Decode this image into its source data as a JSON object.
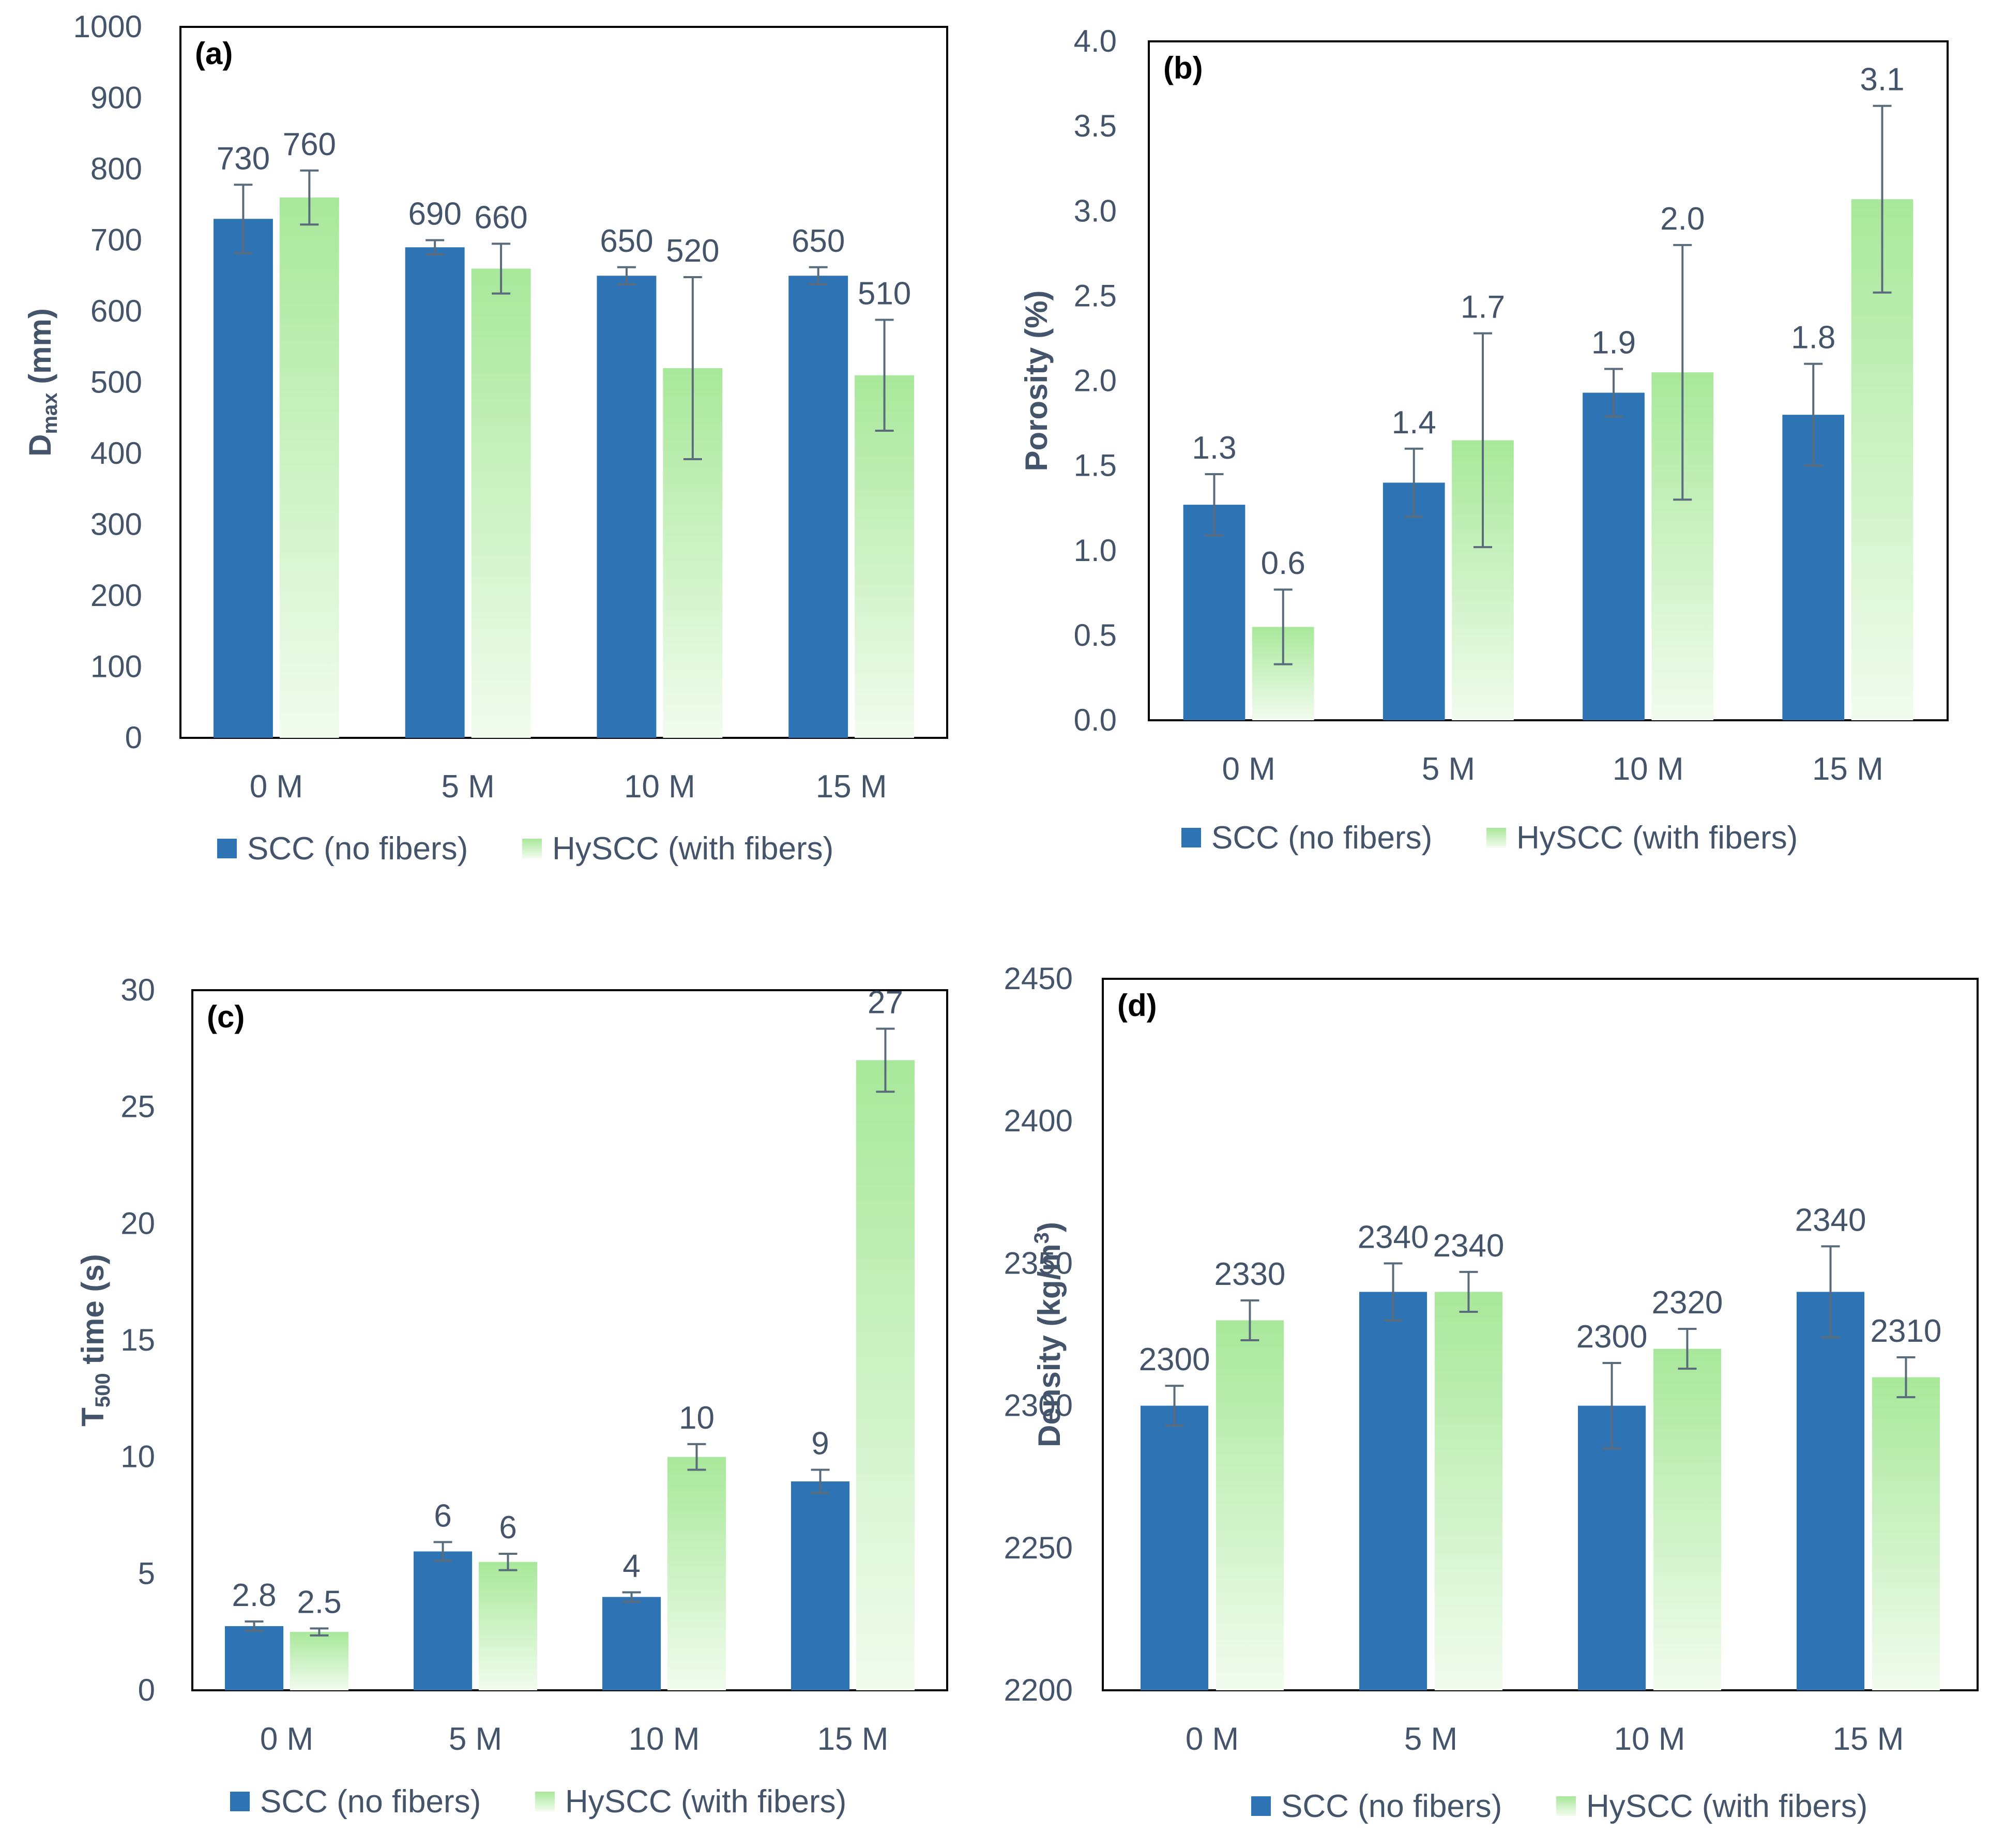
{
  "colors": {
    "scc": "#2e74b5",
    "hyscc_top": "#a8e89a",
    "hyscc_bottom": "#f2fcef",
    "axis_text": "#44546a",
    "error_bar": "#5a6b7c",
    "frame": "#000000"
  },
  "legend": {
    "scc": "SCC (no fibers)",
    "hyscc": "HySCC (with fibers)"
  },
  "chart_data": [
    {
      "id": "a",
      "type": "bar",
      "panel_label": "(a)",
      "ylabel": {
        "main": "D",
        "sub": "max",
        "rest": " (mm)"
      },
      "categories": [
        "0 M",
        "5 M",
        "10 M",
        "15 M"
      ],
      "ylim": [
        0,
        1000
      ],
      "yticks": [
        0,
        100,
        200,
        300,
        400,
        500,
        600,
        700,
        800,
        900,
        1000
      ],
      "ytick_labels": [
        "0",
        "100",
        "200",
        "300",
        "400",
        "500",
        "600",
        "700",
        "800",
        "900",
        "1000"
      ],
      "series": [
        {
          "name": "SCC (no fibers)",
          "values": [
            730,
            690,
            650,
            650
          ],
          "errors": [
            48,
            10,
            12,
            12
          ],
          "labels": [
            "730",
            "690",
            "650",
            "650"
          ]
        },
        {
          "name": "HySCC (with fibers)",
          "values": [
            760,
            660,
            520,
            510
          ],
          "errors": [
            38,
            35,
            128,
            78
          ],
          "labels": [
            "760",
            "660",
            "520",
            "510"
          ]
        }
      ]
    },
    {
      "id": "b",
      "type": "bar",
      "panel_label": "(b)",
      "ylabel": {
        "main": "Porosity  (%)",
        "sub": "",
        "rest": ""
      },
      "categories": [
        "0 M",
        "5 M",
        "10 M",
        "15 M"
      ],
      "ylim": [
        0,
        4
      ],
      "yticks": [
        0,
        0.5,
        1,
        1.5,
        2,
        2.5,
        3,
        3.5,
        4
      ],
      "ytick_labels": [
        "0.0",
        "0.5",
        "1.0",
        "1.5",
        "2.0",
        "2.5",
        "3.0",
        "3.5",
        "4.0"
      ],
      "series": [
        {
          "name": "SCC (no fibers)",
          "values": [
            1.27,
            1.4,
            1.93,
            1.8
          ],
          "errors": [
            0.18,
            0.2,
            0.14,
            0.3
          ],
          "labels": [
            "1.3",
            "1.4",
            "1.9",
            "1.8"
          ]
        },
        {
          "name": "HySCC (with fibers)",
          "values": [
            0.55,
            1.65,
            2.05,
            3.07
          ],
          "errors": [
            0.22,
            0.63,
            0.75,
            0.55
          ],
          "labels": [
            "0.6",
            "1.7",
            "2.0",
            "3.1"
          ]
        }
      ]
    },
    {
      "id": "c",
      "type": "bar",
      "panel_label": "(c)",
      "ylabel": {
        "main": "T",
        "sub": "500",
        "rest": " time (s)"
      },
      "categories": [
        "0 M",
        "5 M",
        "10 M",
        "15 M"
      ],
      "ylim": [
        0,
        30
      ],
      "yticks": [
        0,
        5,
        10,
        15,
        20,
        25,
        30
      ],
      "ytick_labels": [
        "0",
        "5",
        "10",
        "15",
        "20",
        "25",
        "30"
      ],
      "series": [
        {
          "name": "SCC (no fibers)",
          "values": [
            2.75,
            5.95,
            4.0,
            8.95
          ],
          "errors": [
            0.2,
            0.4,
            0.2,
            0.5
          ],
          "labels": [
            "2.8",
            "6",
            "4",
            "9"
          ]
        },
        {
          "name": "HySCC (with fibers)",
          "values": [
            2.5,
            5.5,
            10.0,
            27.0
          ],
          "errors": [
            0.15,
            0.35,
            0.55,
            1.35
          ],
          "labels": [
            "2.5",
            "6",
            "10",
            "27"
          ]
        }
      ]
    },
    {
      "id": "d",
      "type": "bar",
      "panel_label": "(d)",
      "ylabel": {
        "main": "Density (kg/m",
        "sub": "3",
        "rest": ")",
        "sub_super": true
      },
      "categories": [
        "0 M",
        "5 M",
        "10 M",
        "15 M"
      ],
      "ylim": [
        2200,
        2450
      ],
      "yticks": [
        2200,
        2250,
        2300,
        2350,
        2400,
        2450
      ],
      "ytick_labels": [
        "2200",
        "2250",
        "2300",
        "2350",
        "2400",
        "2450"
      ],
      "series": [
        {
          "name": "SCC (no fibers)",
          "values": [
            2300,
            2340,
            2300,
            2340
          ],
          "errors": [
            7,
            10,
            15,
            16
          ],
          "labels": [
            "2300",
            "2340",
            "2300",
            "2340"
          ]
        },
        {
          "name": "HySCC (with fibers)",
          "values": [
            2330,
            2340,
            2320,
            2310
          ],
          "errors": [
            7,
            7,
            7,
            7
          ],
          "labels": [
            "2330",
            "2340",
            "2320",
            "2310"
          ]
        }
      ]
    }
  ]
}
